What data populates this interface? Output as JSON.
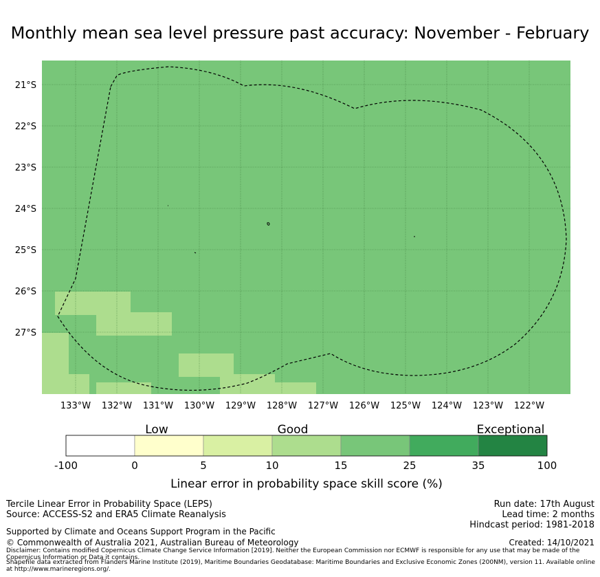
{
  "title": "Monthly mean sea level pressure past accuracy: November - February",
  "map": {
    "lon_labels": [
      "133°W",
      "132°W",
      "131°W",
      "130°W",
      "129°W",
      "128°W",
      "127°W",
      "126°W",
      "125°W",
      "124°W",
      "123°W",
      "122°W"
    ],
    "lat_labels": [
      "21°S",
      "22°S",
      "23°S",
      "24°S",
      "25°S",
      "26°S",
      "27°S"
    ],
    "base_category": "15-25",
    "patches": [
      {
        "lon": -133.0,
        "lat": -26.3,
        "category": "10-15"
      },
      {
        "lon": -132.5,
        "lat": -26.3,
        "category": "10-15"
      },
      {
        "lon": -132.0,
        "lat": -26.3,
        "category": "10-15"
      },
      {
        "lon": -132.0,
        "lat": -26.8,
        "category": "10-15"
      },
      {
        "lon": -131.5,
        "lat": -26.8,
        "category": "10-15"
      },
      {
        "lon": -131.0,
        "lat": -26.8,
        "category": "10-15"
      },
      {
        "lon": -133.5,
        "lat": -27.3,
        "category": "10-15"
      },
      {
        "lon": -133.5,
        "lat": -27.8,
        "category": "10-15"
      },
      {
        "lon": -133.0,
        "lat": -28.3,
        "category": "10-15"
      },
      {
        "lon": -133.5,
        "lat": -28.3,
        "category": "10-15"
      },
      {
        "lon": -132.0,
        "lat": -28.5,
        "category": "10-15"
      },
      {
        "lon": -131.5,
        "lat": -28.5,
        "category": "10-15"
      },
      {
        "lon": -130.0,
        "lat": -27.8,
        "category": "10-15"
      },
      {
        "lon": -129.5,
        "lat": -27.8,
        "category": "10-15"
      },
      {
        "lon": -129.0,
        "lat": -28.3,
        "category": "10-15"
      },
      {
        "lon": -128.5,
        "lat": -28.3,
        "category": "10-15"
      },
      {
        "lon": -128.0,
        "lat": -28.5,
        "category": "10-15"
      },
      {
        "lon": -127.5,
        "lat": -28.5,
        "category": "10-15"
      }
    ]
  },
  "colorbar": {
    "ticks": [
      "-100",
      "0",
      "5",
      "10",
      "15",
      "25",
      "35",
      "100"
    ],
    "colors": [
      "#ffffff",
      "#ffffcc",
      "#d9f0a3",
      "#addd8e",
      "#78c679",
      "#41ab5d",
      "#238443"
    ],
    "category_labels": {
      "low": "Low",
      "good": "Good",
      "exceptional": "Exceptional"
    },
    "label": "Linear error in probability space skill score (%)"
  },
  "footer": {
    "method": "Tercile Linear Error in Probability Space (LEPS)",
    "source": "Source: ACCESS-S2 and ERA5 Climate Reanalysis",
    "supported_by": "Supported by Climate and Oceans Support Program in the Pacific",
    "copyright": "© Commonwealth of Australia 2021, Australian Bureau of Meteorology",
    "disclaimer": "Disclaimer: Contains modified Copernicus Climate Change Service Information [2019]. Neither the European Commission nor ECMWF is responsible for any use that may be made of the Copernicus Information or Data it contains.",
    "shapefile": "Shapefile data extracted from Flanders Marine Institute (2019), Maritime Boundaries Geodatabase: Maritime Boundaries and Exclusive Economic Zones (200NM), version 11. Available online at http://www.marineregions.org/.",
    "run_date": "Run date: 17th August",
    "lead_time": "Lead time: 2 months",
    "hindcast": "Hindcast period: 1981-2018",
    "created": "Created: 14/10/2021"
  }
}
